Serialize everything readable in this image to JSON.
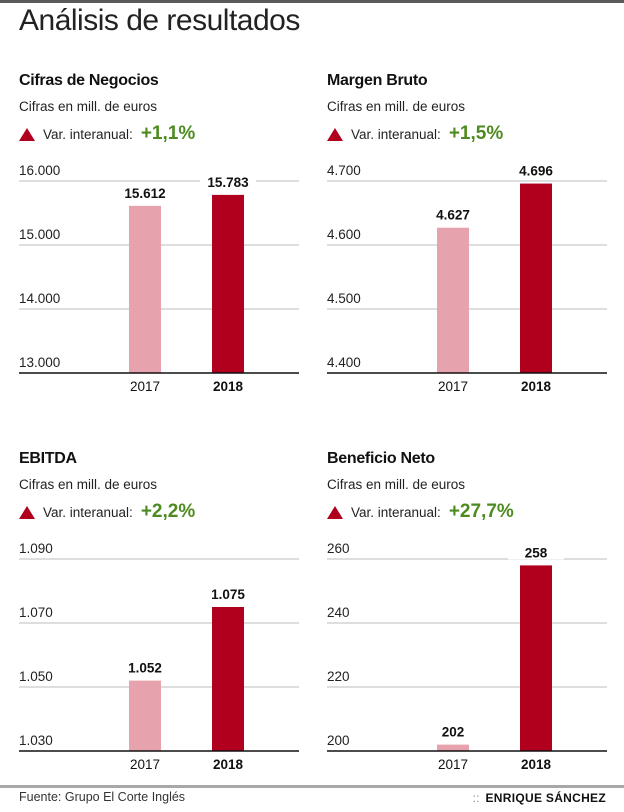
{
  "header": {
    "title": "Análisis de resultados"
  },
  "colors": {
    "bar_2017": "#e6a3ae",
    "bar_2018": "#b0001e",
    "positive": "#4d8a1f",
    "triangle": "#b0001e",
    "grid": "#d4d4d4",
    "axis": "#111111"
  },
  "panels": [
    {
      "title": "Cifras de Negocios",
      "subtitle": "Cifras en mill. de euros",
      "var_label": "Var. interanual:",
      "var_value": "+1,1%"
    },
    {
      "title": "Margen Bruto",
      "subtitle": "Cifras en mill. de euros",
      "var_label": "Var. interanual:",
      "var_value": "+1,5%"
    },
    {
      "title": "EBITDA",
      "subtitle": "Cifras en mill. de euros",
      "var_label": "Var. interanual:",
      "var_value": "+2,2%"
    },
    {
      "title": "Beneficio Neto",
      "subtitle": "Cifras en mill. de euros",
      "var_label": "Var. interanual:",
      "var_value": "+27,7%"
    }
  ],
  "chart_data": [
    {
      "type": "bar",
      "title": "Cifras de Negocios",
      "categories": [
        "2017",
        "2018"
      ],
      "values": [
        15612,
        15783
      ],
      "value_labels": [
        "15.612",
        "15.783"
      ],
      "ylim": [
        13000,
        16000
      ],
      "yticks": [
        13000,
        14000,
        15000,
        16000
      ],
      "ytick_labels": [
        "13.000",
        "14.000",
        "15.000",
        "16.000"
      ],
      "xlabel": "",
      "ylabel": "",
      "grid": true
    },
    {
      "type": "bar",
      "title": "Margen Bruto",
      "categories": [
        "2017",
        "2018"
      ],
      "values": [
        4627,
        4696
      ],
      "value_labels": [
        "4.627",
        "4.696"
      ],
      "ylim": [
        4400,
        4700
      ],
      "yticks": [
        4400,
        4500,
        4600,
        4700
      ],
      "ytick_labels": [
        "4.400",
        "4.500",
        "4.600",
        "4.700"
      ],
      "xlabel": "",
      "ylabel": "",
      "grid": true
    },
    {
      "type": "bar",
      "title": "EBITDA",
      "categories": [
        "2017",
        "2018"
      ],
      "values": [
        1052,
        1075
      ],
      "value_labels": [
        "1.052",
        "1.075"
      ],
      "ylim": [
        1030,
        1090
      ],
      "yticks": [
        1030,
        1050,
        1070,
        1090
      ],
      "ytick_labels": [
        "1.030",
        "1.050",
        "1.070",
        "1.090"
      ],
      "xlabel": "",
      "ylabel": "",
      "grid": true
    },
    {
      "type": "bar",
      "title": "Beneficio Neto",
      "categories": [
        "2017",
        "2018"
      ],
      "values": [
        202,
        258
      ],
      "value_labels": [
        "202",
        "258"
      ],
      "ylim": [
        200,
        260
      ],
      "yticks": [
        200,
        220,
        240,
        260
      ],
      "ytick_labels": [
        "200",
        "220",
        "240",
        "260"
      ],
      "xlabel": "",
      "ylabel": "",
      "grid": true
    }
  ],
  "footer": {
    "source": "Fuente: Grupo El Corte Inglés",
    "author_prefix": "::",
    "author": "ENRIQUE SÁNCHEZ"
  }
}
